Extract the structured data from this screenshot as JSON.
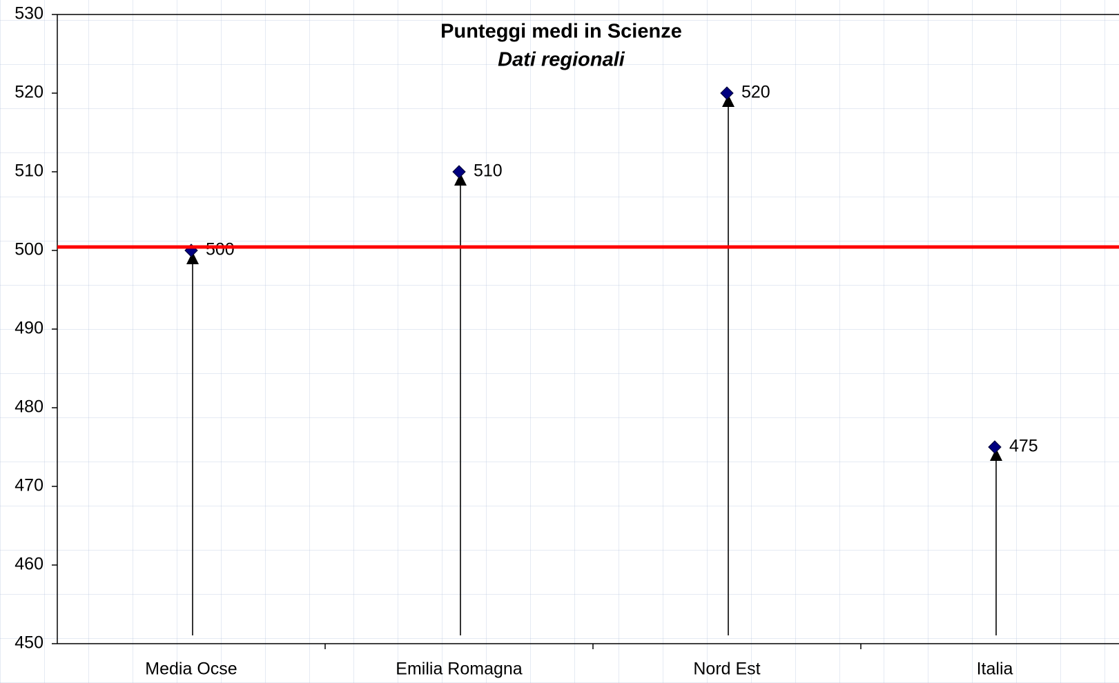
{
  "chart_data": {
    "type": "stem",
    "title": "Punteggi medi in Scienze",
    "subtitle": "Dati regionali",
    "categories": [
      "Media Ocse",
      "Emilia Romagna",
      "Nord Est",
      "Italia"
    ],
    "values": [
      500,
      510,
      520,
      475
    ],
    "color": "#000080",
    "stem_color": "#000000",
    "reference_line": {
      "value": 500,
      "color": "#ff0000"
    },
    "ylim": [
      450,
      530
    ],
    "yticks": [
      450,
      460,
      470,
      480,
      490,
      500,
      510,
      520,
      530
    ],
    "grid": false
  }
}
